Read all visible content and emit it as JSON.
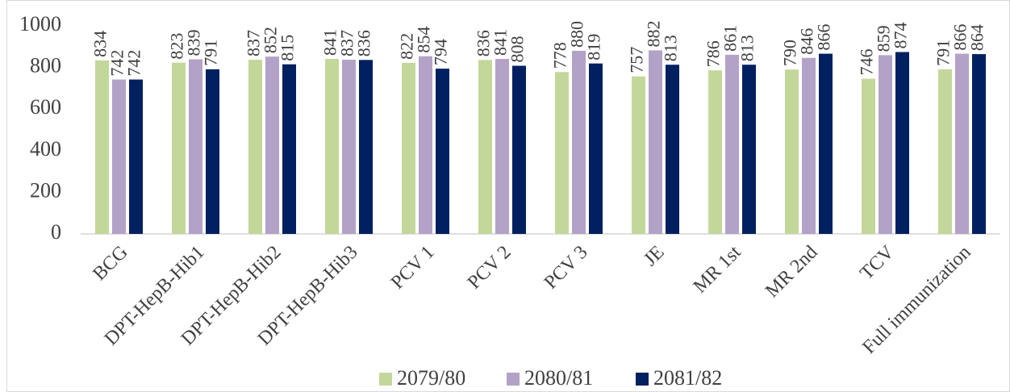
{
  "chart_data": {
    "type": "bar",
    "categories": [
      "BCG",
      "DPT-HepB-Hib1",
      "DPT-HepB-Hib2",
      "DPT-HepB-Hib3",
      "PCV 1",
      "PCV 2",
      "PCV 3",
      "JE",
      "MR 1st",
      "MR 2nd",
      "TCV",
      "Full immunization"
    ],
    "series": [
      {
        "name": "2079/80",
        "color": "#c4d79b",
        "values": [
          834,
          823,
          837,
          841,
          822,
          836,
          778,
          757,
          786,
          790,
          746,
          791
        ]
      },
      {
        "name": "2080/81",
        "color": "#b3a2c7",
        "values": [
          742,
          839,
          852,
          837,
          854,
          841,
          880,
          882,
          861,
          846,
          859,
          866
        ]
      },
      {
        "name": "2081/82",
        "color": "#002060",
        "values": [
          742,
          791,
          815,
          836,
          794,
          808,
          819,
          813,
          813,
          866,
          874,
          864
        ]
      }
    ],
    "ylim": [
      0,
      1000
    ],
    "yticks": [
      0,
      200,
      400,
      600,
      800,
      1000
    ],
    "grid": false,
    "legend": "bottom"
  }
}
